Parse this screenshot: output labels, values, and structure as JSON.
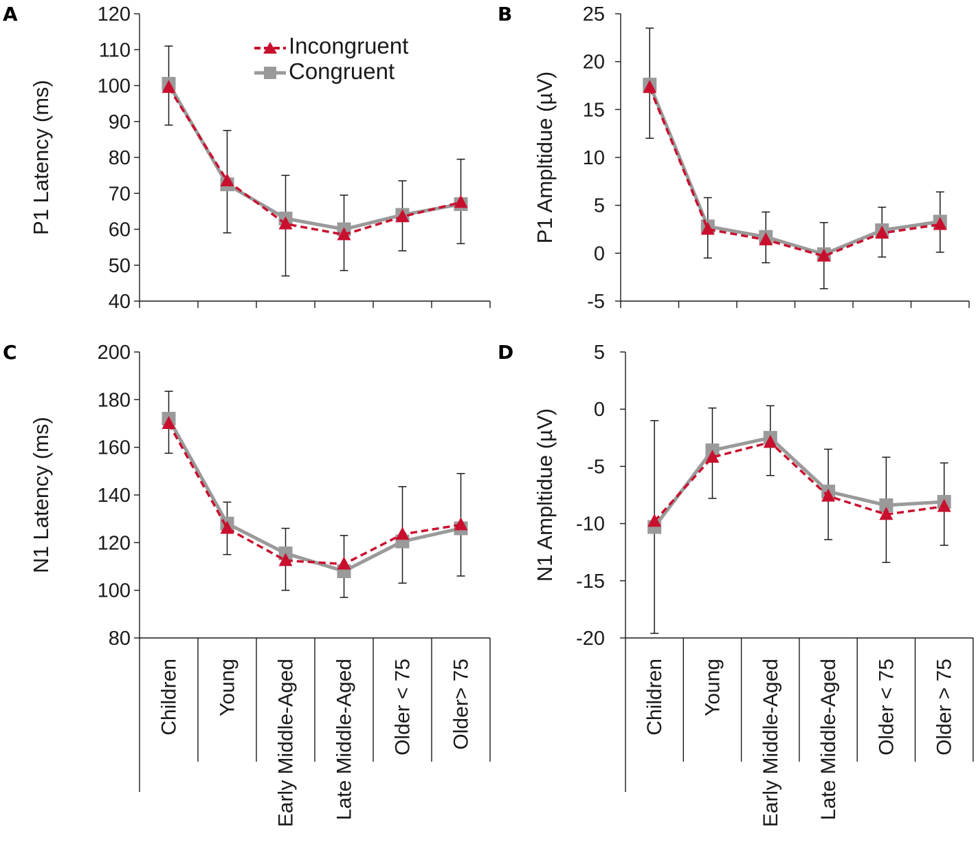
{
  "legend": {
    "incongruent": "Incongruent",
    "congruent": "Congruent"
  },
  "colors": {
    "incongruent": "#c8102e",
    "congruent": "#9a9a9a",
    "axis": "#1a1a1a",
    "errorbar": "#1a1a1a"
  },
  "categories": [
    "Children",
    "Young",
    "Early Middle-Aged",
    "Late Middle-Aged",
    "Older < 75",
    "Older> 75"
  ],
  "categories_d": [
    "Children",
    "Young",
    "Early Middle-Aged",
    "Late Middle-Aged",
    "Older < 75",
    "Older > 75"
  ],
  "chart_data": [
    {
      "panel": "A",
      "type": "line",
      "ylabel": "P1 Latency  (ms)",
      "ylim": [
        40,
        120
      ],
      "yticks": [
        40,
        50,
        60,
        70,
        80,
        90,
        100,
        110,
        120
      ],
      "categories": [
        "Children",
        "Young",
        "Early Middle-Aged",
        "Late Middle-Aged",
        "Older < 75",
        "Older> 75"
      ],
      "series": [
        {
          "name": "Incongruent",
          "values": [
            99.5,
            73.5,
            61.5,
            58.5,
            63.5,
            67.5
          ],
          "err_low": [
            89,
            59,
            47,
            48.5,
            54,
            56
          ],
          "err_high": [
            111,
            87.5,
            75,
            69.5,
            73.5,
            79.5
          ]
        },
        {
          "name": "Congruent",
          "values": [
            100.5,
            72.5,
            63,
            60,
            64,
            67
          ],
          "err_low": [
            89,
            59,
            47,
            48.5,
            54,
            56
          ],
          "err_high": [
            111,
            87.5,
            75,
            69.5,
            73.5,
            79.5
          ]
        }
      ]
    },
    {
      "panel": "B",
      "type": "line",
      "ylabel": "P1 Ampltidue  (µV)",
      "ylim": [
        -5,
        25
      ],
      "yticks": [
        -5,
        0,
        5,
        10,
        15,
        20,
        25
      ],
      "categories": [
        "Children",
        "Young",
        "Early Middle-Aged",
        "Late Middle-Aged",
        "Older < 75",
        "Older> 75"
      ],
      "series": [
        {
          "name": "Incongruent",
          "values": [
            17.3,
            2.5,
            1.4,
            -0.3,
            2.1,
            3.0
          ],
          "err_low": [
            12,
            -0.5,
            -1,
            -3.7,
            -0.4,
            0.1
          ],
          "err_high": [
            23.5,
            5.8,
            4.3,
            3.2,
            4.8,
            6.4
          ]
        },
        {
          "name": "Congruent",
          "values": [
            17.6,
            2.8,
            1.7,
            -0.1,
            2.4,
            3.3
          ],
          "err_low": [
            12,
            -0.5,
            -1,
            -3.7,
            -0.4,
            0.1
          ],
          "err_high": [
            23.5,
            5.8,
            4.3,
            3.2,
            4.8,
            6.4
          ]
        }
      ]
    },
    {
      "panel": "C",
      "type": "line",
      "ylabel": "N1 Latency  (ms)",
      "ylim": [
        80,
        200
      ],
      "yticks": [
        80,
        100,
        120,
        140,
        160,
        180,
        200
      ],
      "categories": [
        "Children",
        "Young",
        "Early Middle-Aged",
        "Late Middle-Aged",
        "Older < 75",
        "Older> 75"
      ],
      "series": [
        {
          "name": "Incongruent",
          "values": [
            170,
            126,
            112.5,
            111,
            123.5,
            127.5
          ],
          "err_low": [
            157.5,
            115,
            100,
            97,
            103,
            106
          ],
          "err_high": [
            183.5,
            137,
            126,
            123,
            143.5,
            149
          ]
        },
        {
          "name": "Congruent",
          "values": [
            172,
            128,
            115.5,
            108,
            120.5,
            126
          ],
          "err_low": [
            157.5,
            115,
            100,
            97,
            103,
            106
          ],
          "err_high": [
            183.5,
            137,
            126,
            123,
            143.5,
            149
          ]
        }
      ]
    },
    {
      "panel": "D",
      "type": "line",
      "ylabel": "N1 Ampltidue  (µV)",
      "ylim": [
        -20,
        5
      ],
      "yticks": [
        -20,
        -15,
        -10,
        -5,
        0,
        5
      ],
      "categories": [
        "Children",
        "Young",
        "Early Middle-Aged",
        "Late Middle-Aged",
        "Older < 75",
        "Older > 75"
      ],
      "series": [
        {
          "name": "Incongruent",
          "values": [
            -9.8,
            -4.2,
            -2.9,
            -7.6,
            -9.2,
            -8.5
          ],
          "err_low": [
            -19.6,
            -7.8,
            -5.8,
            -11.4,
            -13.4,
            -11.9
          ],
          "err_high": [
            -1,
            0.1,
            0.3,
            -3.5,
            -4.2,
            -4.7
          ]
        },
        {
          "name": "Congruent",
          "values": [
            -10.3,
            -3.6,
            -2.5,
            -7.2,
            -8.4,
            -8.1
          ],
          "err_low": [
            -19.6,
            -7.8,
            -5.8,
            -11.4,
            -13.4,
            -11.9
          ],
          "err_high": [
            -1,
            0.1,
            0.3,
            -3.5,
            -4.2,
            -4.7
          ]
        }
      ]
    }
  ]
}
